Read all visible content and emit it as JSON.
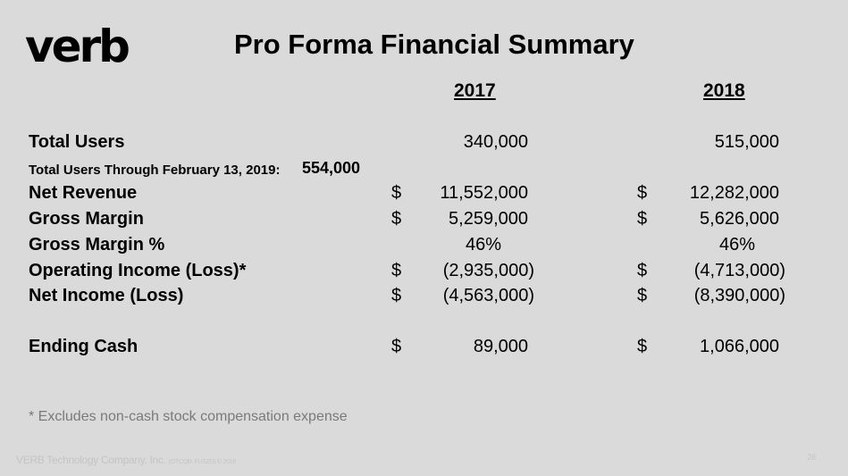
{
  "logo": "verb",
  "title": "Pro Forma Financial Summary",
  "years": [
    "2017",
    "2018"
  ],
  "rows": [
    {
      "label": "Total Users",
      "v2017": "340,000",
      "v2018": "515,000",
      "dollar": false
    },
    {
      "label": "Net Revenue",
      "v2017": "11,552,000",
      "v2018": "12,282,000",
      "dollar": true
    },
    {
      "label": "Gross Margin",
      "v2017": "5,259,000",
      "v2018": "5,626,000",
      "dollar": true
    },
    {
      "label": "Gross Margin %",
      "v2017": "46%",
      "v2018": "46%",
      "dollar": false
    },
    {
      "label": "Operating Income (Loss)*",
      "v2017": "(2,935,000)",
      "v2018": "(4,713,000)",
      "dollar": true
    },
    {
      "label": "Net Income (Loss)",
      "v2017": "(4,563,000)",
      "v2018": "(8,390,000)",
      "dollar": true
    },
    {
      "label": "Ending Cash",
      "v2017": "89,000",
      "v2018": "1,066,000",
      "dollar": true
    }
  ],
  "dollar_sign": "$",
  "users_through": {
    "label": "Total Users Through February 13, 2019:",
    "value": "554,000"
  },
  "footnote": "* Excludes non-cash stock compensation expense",
  "footer": {
    "company": "VERB Technology Company, Inc.",
    "ticker": "(OTCQB: FUSZD) © 2018",
    "page": "28"
  }
}
